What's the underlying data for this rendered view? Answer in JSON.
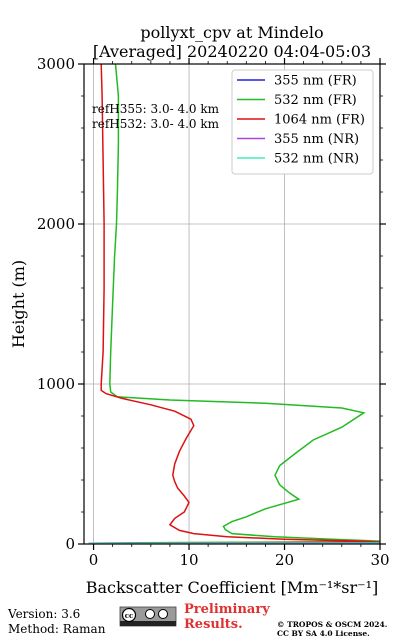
{
  "chart_data": {
    "type": "line",
    "title_line1": "pollyxt_cpv at Mindelo",
    "title_line2": "[Averaged] 20240220 04:04-05:03",
    "xlabel": "Backscatter Coefficient [Mm⁻¹*sr⁻¹]",
    "ylabel": "Height (m)",
    "xlim": [
      -1,
      30
    ],
    "ylim": [
      0,
      3000
    ],
    "xticks": [
      0,
      10,
      20,
      30
    ],
    "yticks": [
      0,
      1000,
      2000,
      3000
    ],
    "grid": true,
    "legend_position": "top-right",
    "annotation_lines": [
      "refH355:  3.0- 4.0 km",
      "refH532:  3.0- 4.0 km"
    ],
    "series": [
      {
        "name": "355 nm (FR)",
        "color": "#2222dd",
        "points": []
      },
      {
        "name": "532 nm (FR)",
        "color": "#22bb22",
        "points": [
          [
            -0.5,
            5
          ],
          [
            5,
            8
          ],
          [
            12,
            10
          ],
          [
            20,
            12
          ],
          [
            28.5,
            15
          ],
          [
            30,
            18
          ],
          [
            25,
            30
          ],
          [
            19,
            45
          ],
          [
            14.5,
            65
          ],
          [
            13.8,
            90
          ],
          [
            13.6,
            110
          ],
          [
            14.5,
            140
          ],
          [
            16,
            170
          ],
          [
            18,
            220
          ],
          [
            21.5,
            280
          ],
          [
            20.5,
            320
          ],
          [
            19.5,
            370
          ],
          [
            19,
            430
          ],
          [
            19.5,
            490
          ],
          [
            21,
            560
          ],
          [
            23,
            650
          ],
          [
            26,
            730
          ],
          [
            28.3,
            820
          ],
          [
            26,
            850
          ],
          [
            18,
            880
          ],
          [
            8,
            900
          ],
          [
            2.5,
            920
          ],
          [
            1.8,
            950
          ],
          [
            1.7,
            1000
          ],
          [
            1.8,
            1200
          ],
          [
            2,
            1500
          ],
          [
            2.2,
            1800
          ],
          [
            2.4,
            2000
          ],
          [
            2.5,
            2200
          ],
          [
            2.6,
            2500
          ],
          [
            2.6,
            2800
          ],
          [
            2.3,
            3000
          ]
        ]
      },
      {
        "name": "1064 nm (FR)",
        "color": "#dd1111",
        "points": [
          [
            5.5,
            5
          ],
          [
            15,
            8
          ],
          [
            24,
            11
          ],
          [
            30,
            12
          ],
          [
            28,
            18
          ],
          [
            20,
            30
          ],
          [
            14,
            45
          ],
          [
            10.5,
            65
          ],
          [
            9,
            85
          ],
          [
            8,
            120
          ],
          [
            8.5,
            160
          ],
          [
            9.5,
            200
          ],
          [
            10,
            260
          ],
          [
            9.5,
            300
          ],
          [
            8.8,
            350
          ],
          [
            8.5,
            390
          ],
          [
            8.3,
            430
          ],
          [
            8.5,
            500
          ],
          [
            9,
            580
          ],
          [
            9.7,
            660
          ],
          [
            10.5,
            740
          ],
          [
            10.2,
            780
          ],
          [
            8.5,
            830
          ],
          [
            6,
            870
          ],
          [
            3,
            910
          ],
          [
            1.3,
            940
          ],
          [
            0.8,
            960
          ],
          [
            0.8,
            1000
          ],
          [
            1,
            1200
          ],
          [
            1.1,
            1600
          ],
          [
            1.1,
            2000
          ],
          [
            1,
            2400
          ],
          [
            0.9,
            2800
          ],
          [
            0.8,
            3000
          ]
        ]
      },
      {
        "name": "355 nm (NR)",
        "color": "#aa44dd",
        "points": [
          [
            -0.5,
            5
          ],
          [
            10,
            6
          ],
          [
            20,
            7
          ],
          [
            30,
            8
          ]
        ]
      },
      {
        "name": "532 nm (NR)",
        "color": "#44eebb",
        "points": [
          [
            -0.5,
            3
          ],
          [
            8,
            4
          ],
          [
            18,
            5
          ],
          [
            30,
            5
          ]
        ]
      }
    ]
  },
  "footer": {
    "version": "Version: 3.6",
    "method": "Method: Raman",
    "preliminary_line1": "Preliminary",
    "preliminary_line2": "Results.",
    "license_line1": "© TROPOS & OSCM 2024.",
    "license_line2": "CC BY SA 4.0 License.",
    "badge_text": "cc by sa",
    "preliminary_color": "#e03030"
  }
}
